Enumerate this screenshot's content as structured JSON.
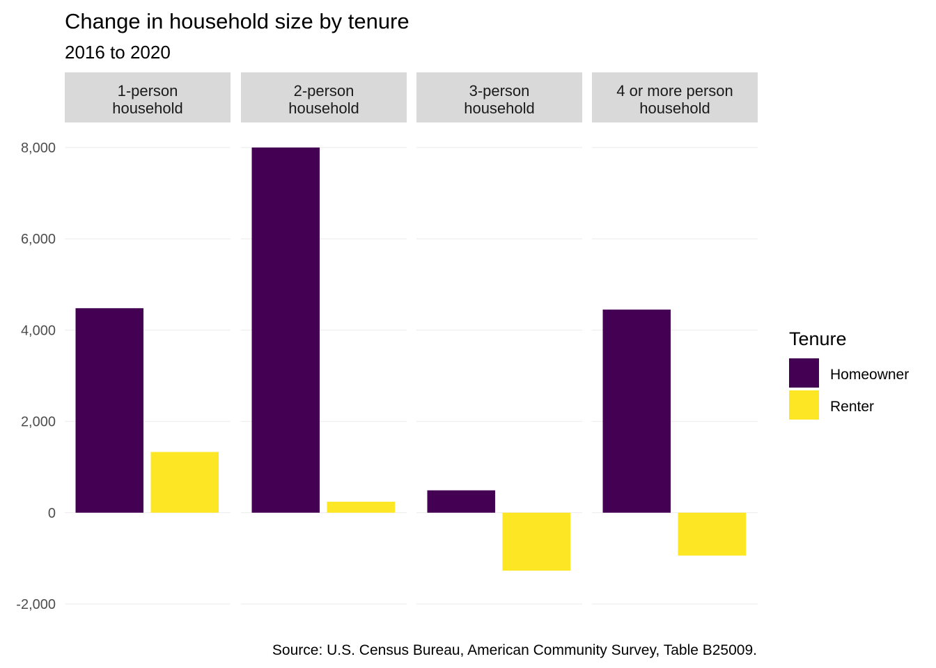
{
  "chart_data": {
    "type": "bar",
    "title": "Change in household size by tenure",
    "subtitle": "2016 to 2020",
    "caption": "Source: U.S. Census Bureau, American Community Survey, Table B25009.",
    "facets": [
      {
        "label_lines": [
          "1-person",
          "household"
        ],
        "values": {
          "Homeowner": 4480,
          "Renter": 1330
        }
      },
      {
        "label_lines": [
          "2-person",
          "household"
        ],
        "values": {
          "Homeowner": 8000,
          "Renter": 240
        }
      },
      {
        "label_lines": [
          "3-person",
          "household"
        ],
        "values": {
          "Homeowner": 490,
          "Renter": -1270
        }
      },
      {
        "label_lines": [
          "4 or more person",
          "household"
        ],
        "values": {
          "Homeowner": 4450,
          "Renter": -940
        }
      }
    ],
    "series": [
      {
        "name": "Homeowner",
        "color": "#440154"
      },
      {
        "name": "Renter",
        "color": "#FDE725"
      }
    ],
    "legend": {
      "title": "Tenure",
      "position": "right"
    },
    "y_ticks": [
      -2000,
      0,
      2000,
      4000,
      6000,
      8000
    ],
    "y_tick_labels": [
      "-2,000",
      "0",
      "2,000",
      "4,000",
      "6,000",
      "8,000"
    ],
    "ylim": [
      -2000,
      8000
    ],
    "grid": true
  }
}
